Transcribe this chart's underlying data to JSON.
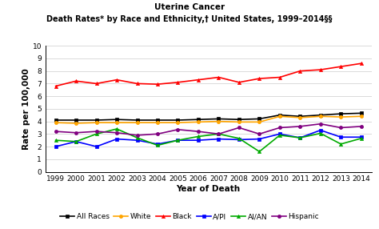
{
  "title_line1": "Uterine Cancer",
  "title_line2": "Death Rates* by Race and Ethnicity,† United States, 1999–2014§§",
  "xlabel": "Year of Death",
  "ylabel": "Rate per 100,000",
  "years": [
    1999,
    2000,
    2001,
    2002,
    2003,
    2004,
    2005,
    2006,
    2007,
    2008,
    2009,
    2010,
    2011,
    2012,
    2013,
    2014
  ],
  "ylim": [
    0,
    10
  ],
  "yticks": [
    0,
    1,
    2,
    3,
    4,
    5,
    6,
    7,
    8,
    9,
    10
  ],
  "series": {
    "All Races": {
      "color": "#000000",
      "marker": "s",
      "values": [
        4.1,
        4.1,
        4.1,
        4.15,
        4.1,
        4.1,
        4.1,
        4.15,
        4.2,
        4.15,
        4.2,
        4.5,
        4.4,
        4.5,
        4.6,
        4.65
      ]
    },
    "White": {
      "color": "#FFA500",
      "marker": "o",
      "values": [
        3.9,
        3.85,
        3.9,
        3.9,
        3.9,
        3.9,
        3.9,
        3.95,
        4.0,
        3.95,
        3.95,
        4.4,
        4.3,
        4.4,
        4.35,
        4.4
      ]
    },
    "Black": {
      "color": "#FF0000",
      "marker": "^",
      "values": [
        6.8,
        7.2,
        7.0,
        7.3,
        7.0,
        6.95,
        7.1,
        7.3,
        7.5,
        7.1,
        7.4,
        7.5,
        8.0,
        8.1,
        8.35,
        8.6
      ]
    },
    "A/PI": {
      "color": "#0000FF",
      "marker": "s",
      "values": [
        2.0,
        2.4,
        2.0,
        2.6,
        2.5,
        2.2,
        2.5,
        2.5,
        2.6,
        2.55,
        2.6,
        3.0,
        2.7,
        3.3,
        2.75,
        2.75
      ]
    },
    "AI/AN": {
      "color": "#00AA00",
      "marker": "^",
      "values": [
        2.5,
        2.4,
        3.0,
        3.4,
        2.7,
        2.1,
        2.5,
        2.8,
        3.0,
        2.65,
        1.6,
        2.9,
        2.7,
        3.05,
        2.2,
        2.65
      ]
    },
    "Hispanic": {
      "color": "#800080",
      "marker": "o",
      "values": [
        3.2,
        3.1,
        3.2,
        3.1,
        2.9,
        3.0,
        3.35,
        3.2,
        3.0,
        3.5,
        3.0,
        3.5,
        3.6,
        3.8,
        3.5,
        3.6
      ]
    }
  },
  "background_color": "#ffffff",
  "grid_color": "#cccccc",
  "title_fontsize": 7.5,
  "subtitle_fontsize": 7.0,
  "axis_label_fontsize": 7.5,
  "tick_fontsize": 6.5,
  "legend_fontsize": 6.5
}
